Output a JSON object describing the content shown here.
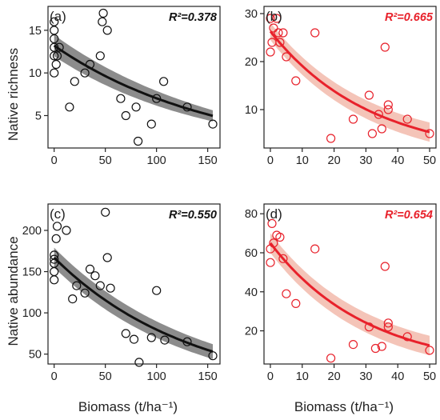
{
  "figure": {
    "xlabel_left": "Biomass (t/ha⁻¹)",
    "xlabel_right": "Biomass (t/ha⁻¹)",
    "ylabel_top": "Native richness",
    "ylabel_bottom": "Native abundance"
  },
  "colors": {
    "black": "#111111",
    "black_band": "#8c8c8c",
    "red": "#e8212b",
    "red_band": "#f4c4b8"
  },
  "chart_data": [
    {
      "panel": "(a)",
      "type": "scatter",
      "r2": "R²=0.378",
      "color": "black",
      "xlim": [
        -6,
        162
      ],
      "ylim": [
        1.2,
        17.8
      ],
      "xticks": [
        0,
        50,
        100,
        150
      ],
      "yticks": [
        5,
        10,
        15
      ],
      "points": [
        [
          0,
          10
        ],
        [
          0,
          12
        ],
        [
          0,
          13
        ],
        [
          0,
          14
        ],
        [
          0,
          15
        ],
        [
          0,
          16
        ],
        [
          2,
          11
        ],
        [
          3,
          12
        ],
        [
          5,
          13
        ],
        [
          15,
          6
        ],
        [
          20,
          9
        ],
        [
          30,
          10
        ],
        [
          35,
          11
        ],
        [
          45,
          12
        ],
        [
          47,
          16
        ],
        [
          48,
          17
        ],
        [
          52,
          15
        ],
        [
          65,
          7
        ],
        [
          70,
          5
        ],
        [
          80,
          6
        ],
        [
          82,
          2
        ],
        [
          95,
          4
        ],
        [
          100,
          7
        ],
        [
          107,
          9
        ],
        [
          130,
          6
        ],
        [
          155,
          4
        ]
      ],
      "fit": {
        "a": 13.2,
        "b": 0.0063,
        "band_start": 1.25,
        "band_end": 0.65
      }
    },
    {
      "panel": "(b)",
      "type": "scatter",
      "r2": "R²=0.665",
      "color": "red",
      "xlim": [
        -2,
        52
      ],
      "ylim": [
        2,
        31.5
      ],
      "xticks": [
        0,
        10,
        20,
        30,
        40,
        50
      ],
      "yticks": [
        10,
        20,
        30
      ],
      "points": [
        [
          0,
          29
        ],
        [
          0,
          22
        ],
        [
          0.5,
          24
        ],
        [
          1,
          27
        ],
        [
          2,
          29
        ],
        [
          2.5,
          26
        ],
        [
          3,
          24
        ],
        [
          4,
          26
        ],
        [
          5,
          21
        ],
        [
          8,
          16
        ],
        [
          14,
          26
        ],
        [
          19,
          4
        ],
        [
          26,
          8
        ],
        [
          31,
          13
        ],
        [
          32,
          5
        ],
        [
          34,
          9
        ],
        [
          35,
          6
        ],
        [
          36,
          23
        ],
        [
          37,
          10
        ],
        [
          37,
          11
        ],
        [
          43,
          8
        ],
        [
          50,
          5
        ]
      ],
      "fit": {
        "a": 26.3,
        "b": 0.032,
        "band_start": 1.8,
        "band_end": 2.0
      }
    },
    {
      "panel": "(c)",
      "type": "scatter",
      "r2": "R²=0.550",
      "color": "black",
      "xlim": [
        -6,
        162
      ],
      "ylim": [
        38,
        232
      ],
      "xticks": [
        0,
        50,
        100,
        150
      ],
      "yticks": [
        50,
        100,
        150,
        200
      ],
      "points": [
        [
          0,
          140
        ],
        [
          0,
          150
        ],
        [
          0,
          160
        ],
        [
          0,
          165
        ],
        [
          0,
          170
        ],
        [
          2,
          190
        ],
        [
          3,
          205
        ],
        [
          12,
          200
        ],
        [
          18,
          117
        ],
        [
          22,
          133
        ],
        [
          30,
          124
        ],
        [
          35,
          153
        ],
        [
          40,
          145
        ],
        [
          45,
          133
        ],
        [
          50,
          222
        ],
        [
          52,
          167
        ],
        [
          55,
          130
        ],
        [
          70,
          75
        ],
        [
          78,
          68
        ],
        [
          83,
          40
        ],
        [
          95,
          70
        ],
        [
          100,
          127
        ],
        [
          108,
          67
        ],
        [
          130,
          65
        ],
        [
          155,
          48
        ]
      ],
      "fit": {
        "a": 167.0,
        "b": 0.0074,
        "band_start": 12,
        "band_end": 9
      }
    },
    {
      "panel": "(d)",
      "type": "scatter",
      "r2": "R²=0.654",
      "color": "red",
      "xlim": [
        -2,
        52
      ],
      "ylim": [
        3,
        85
      ],
      "xticks": [
        0,
        10,
        20,
        30,
        40,
        50
      ],
      "yticks": [
        20,
        40,
        60,
        80
      ],
      "points": [
        [
          0,
          55
        ],
        [
          0,
          62
        ],
        [
          0.5,
          75
        ],
        [
          1,
          65
        ],
        [
          2,
          69
        ],
        [
          3,
          68
        ],
        [
          4,
          57
        ],
        [
          5,
          39
        ],
        [
          8,
          34
        ],
        [
          14,
          62
        ],
        [
          19,
          6
        ],
        [
          26,
          13
        ],
        [
          31,
          22
        ],
        [
          33,
          11
        ],
        [
          35,
          12
        ],
        [
          36,
          53
        ],
        [
          37,
          24
        ],
        [
          37,
          22
        ],
        [
          43,
          17
        ],
        [
          50,
          10
        ]
      ],
      "fit": {
        "a": 65.0,
        "b": 0.033,
        "band_start": 5,
        "band_end": 5
      }
    }
  ]
}
